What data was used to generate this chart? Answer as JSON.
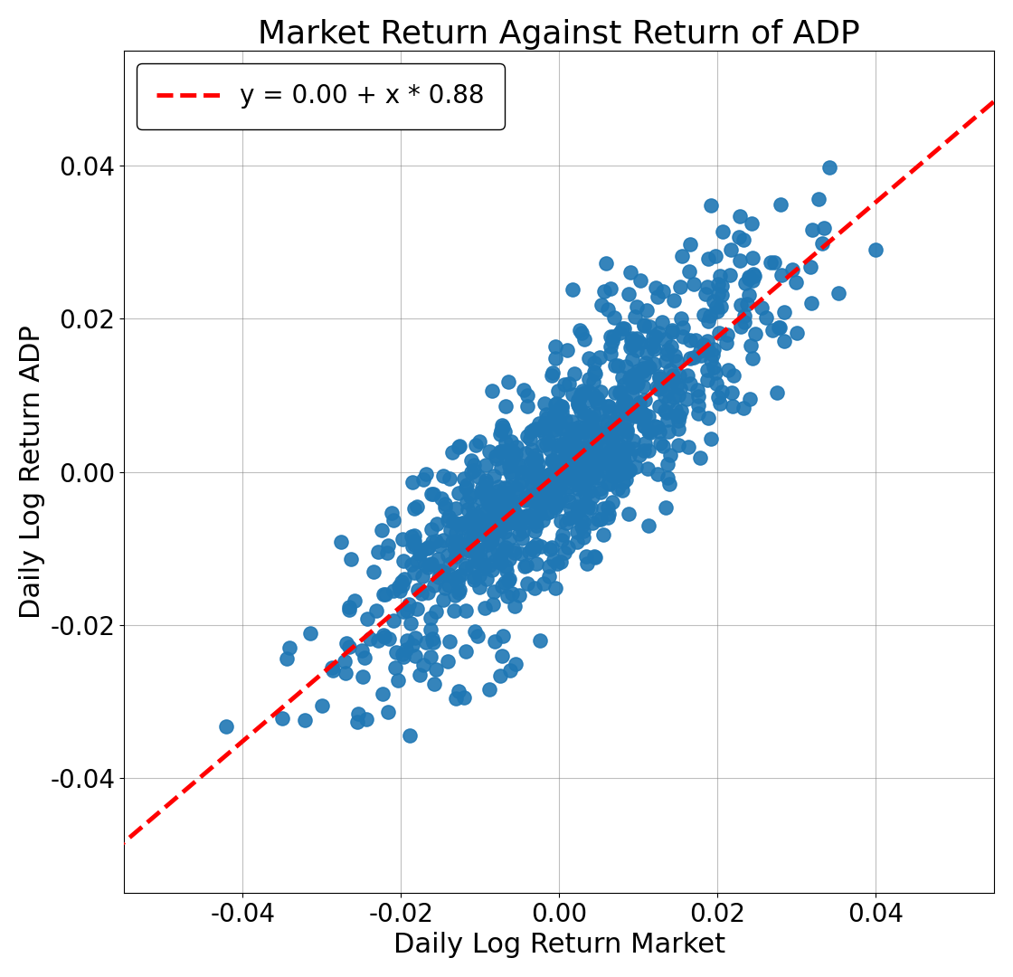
{
  "title": "Market Return Against Return of ADP",
  "xlabel": "Daily Log Return Market",
  "ylabel": "Daily Log Return ADP",
  "intercept": 0.0,
  "slope": 0.88,
  "legend_label": "y = 0.00 + x * 0.88",
  "xlim": [
    -0.055,
    0.055
  ],
  "ylim": [
    -0.055,
    0.055
  ],
  "xticks": [
    -0.04,
    -0.02,
    0.0,
    0.02,
    0.04
  ],
  "yticks": [
    -0.04,
    -0.02,
    0.0,
    0.02,
    0.04
  ],
  "scatter_color": "#1f77b4",
  "line_color": "red",
  "n_points": 1000,
  "random_seed": 42,
  "market_std": 0.013,
  "residual_std": 0.007,
  "title_fontsize": 26,
  "label_fontsize": 22,
  "tick_fontsize": 20,
  "legend_fontsize": 20,
  "marker_size": 120,
  "line_width": 3.5,
  "figwidth": 11.2,
  "figheight": 10.8
}
